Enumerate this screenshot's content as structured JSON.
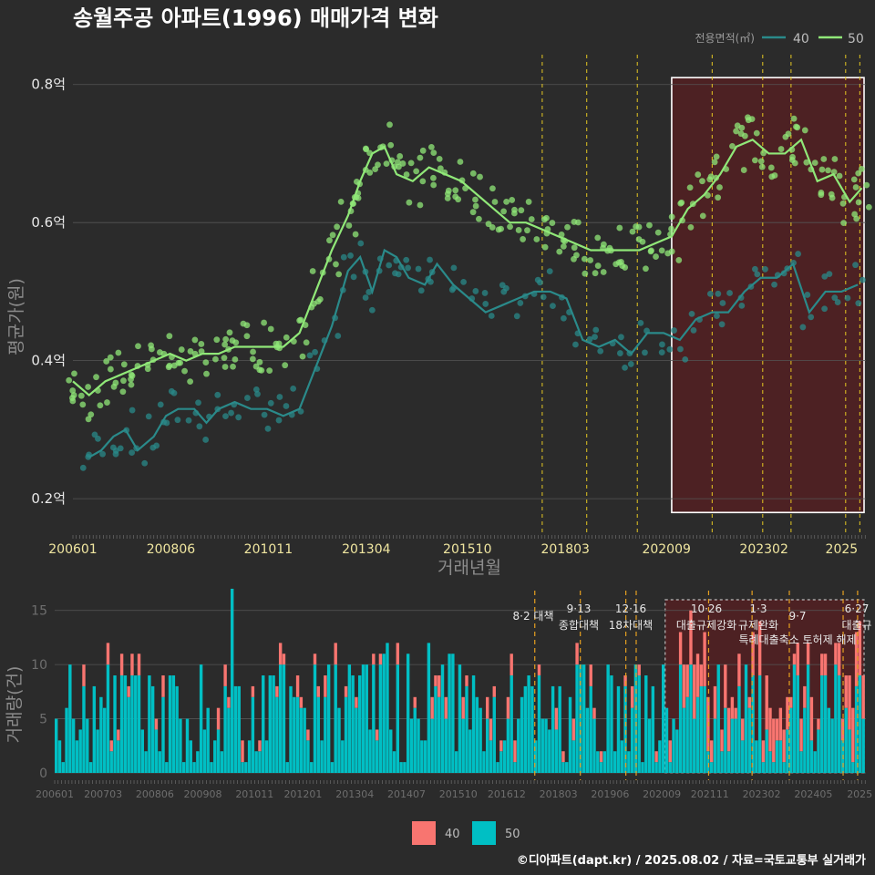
{
  "title": "송월주공 아파트(1996) 매매가격 변화",
  "footer": "©디아파트(dapt.kr) / 2025.08.02 / 자료=국토교통부 실거래가",
  "colors": {
    "background": "#2b2b2b",
    "price40": "#2a8a8a",
    "price50": "#90e878",
    "vol40": "#f87570",
    "vol50": "#00bfc4",
    "highlight": "#5a1f22",
    "policy": "#e6c822"
  },
  "chart_data": [
    {
      "type": "line",
      "title": "송월주공 아파트(1996) 매매가격 변화",
      "xlabel": "거래년월",
      "ylabel": "평균가(원)",
      "x_tick_labels": [
        "200601",
        "200806",
        "201011",
        "201304",
        "201510",
        "201803",
        "202009",
        "202302",
        "2025"
      ],
      "y_tick_labels": [
        "0.2억",
        "0.4억",
        "0.6억",
        "0.8억"
      ],
      "y_ticks": [
        0.2,
        0.4,
        0.6,
        0.8
      ],
      "ylim": [
        0.15,
        0.83
      ],
      "xlim": [
        2006.0,
        2025.6
      ],
      "legend_title": "전용면적(㎡)",
      "legend_position": "top-right",
      "grid": true,
      "series": [
        {
          "name": "40",
          "x": [
            2006.4,
            2006.7,
            2007.0,
            2007.3,
            2007.6,
            2008.0,
            2008.3,
            2008.6,
            2009.0,
            2009.3,
            2009.6,
            2010.0,
            2010.4,
            2010.8,
            2011.2,
            2011.6,
            2012.0,
            2012.4,
            2012.8,
            2013.1,
            2013.4,
            2013.7,
            2014.0,
            2014.3,
            2014.7,
            2015.0,
            2015.4,
            2015.8,
            2016.2,
            2016.6,
            2017.0,
            2017.4,
            2017.8,
            2018.2,
            2018.6,
            2019.0,
            2019.4,
            2019.8,
            2020.2,
            2020.6,
            2021.0,
            2021.4,
            2021.8,
            2022.2,
            2022.6,
            2023.0,
            2023.4,
            2023.8,
            2024.2,
            2024.6,
            2025.0,
            2025.4
          ],
          "y": [
            0.26,
            0.27,
            0.29,
            0.3,
            0.27,
            0.29,
            0.32,
            0.33,
            0.33,
            0.31,
            0.33,
            0.34,
            0.33,
            0.33,
            0.32,
            0.33,
            0.39,
            0.45,
            0.53,
            0.55,
            0.5,
            0.56,
            0.55,
            0.52,
            0.51,
            0.54,
            0.51,
            0.49,
            0.47,
            0.48,
            0.49,
            0.5,
            0.5,
            0.49,
            0.43,
            0.42,
            0.43,
            0.41,
            0.44,
            0.44,
            0.43,
            0.46,
            0.47,
            0.47,
            0.5,
            0.52,
            0.52,
            0.54,
            0.47,
            0.5,
            0.5,
            0.51
          ]
        },
        {
          "name": "50",
          "x": [
            2006.0,
            2006.4,
            2006.8,
            2007.2,
            2007.6,
            2008.0,
            2008.4,
            2008.8,
            2009.2,
            2009.6,
            2010.0,
            2010.4,
            2010.8,
            2011.2,
            2011.6,
            2012.0,
            2012.4,
            2012.8,
            2013.1,
            2013.4,
            2013.7,
            2014.0,
            2014.4,
            2014.8,
            2015.2,
            2015.6,
            2016.0,
            2016.4,
            2016.8,
            2017.2,
            2017.6,
            2018.0,
            2018.4,
            2018.8,
            2019.2,
            2019.6,
            2020.0,
            2020.4,
            2020.8,
            2021.2,
            2021.6,
            2022.0,
            2022.4,
            2022.8,
            2023.2,
            2023.6,
            2024.0,
            2024.4,
            2024.8,
            2025.2,
            2025.5
          ],
          "y": [
            0.37,
            0.35,
            0.37,
            0.38,
            0.39,
            0.4,
            0.41,
            0.4,
            0.41,
            0.41,
            0.42,
            0.42,
            0.42,
            0.42,
            0.44,
            0.5,
            0.56,
            0.61,
            0.66,
            0.7,
            0.71,
            0.67,
            0.66,
            0.68,
            0.67,
            0.66,
            0.64,
            0.62,
            0.6,
            0.6,
            0.59,
            0.58,
            0.57,
            0.56,
            0.56,
            0.56,
            0.56,
            0.57,
            0.58,
            0.62,
            0.64,
            0.67,
            0.71,
            0.72,
            0.7,
            0.7,
            0.72,
            0.66,
            0.67,
            0.63,
            0.65
          ]
        }
      ],
      "highlight_range": [
        2020.8,
        2025.6
      ],
      "policy_lines": [
        2017.6,
        2018.7,
        2019.95,
        2021.8,
        2023.05,
        2023.75,
        2025.1,
        2025.45
      ]
    },
    {
      "type": "bar",
      "xlabel": "",
      "ylabel": "거래량(건)",
      "y_tick_labels": [
        "0",
        "5",
        "10",
        "15"
      ],
      "y_ticks": [
        0,
        5,
        10,
        15
      ],
      "ylim": [
        0,
        17.5
      ],
      "x_tick_labels": [
        "200601",
        "200703",
        "200806",
        "200908",
        "201011",
        "201201",
        "201304",
        "201407",
        "201510",
        "201612",
        "201803",
        "201906",
        "202009",
        "202111",
        "202302",
        "202405",
        "2025"
      ],
      "legend_position": "bottom",
      "series_names": [
        "40",
        "50"
      ],
      "approx_range_50": [
        1,
        12
      ],
      "approx_range_40": [
        0,
        6
      ],
      "annotations": [
        {
          "date": "8·2 대책",
          "label": ""
        },
        {
          "date": "9·13",
          "label": "종합대책"
        },
        {
          "date": "12·16",
          "label": "18차대책"
        },
        {
          "date": "10·26",
          "label": "대출규제강화"
        },
        {
          "date": "1·3",
          "label": "규제완화"
        },
        {
          "date": "9·7",
          "label": "특례대출축소 토허제 해제"
        },
        {
          "date": "6·27",
          "label": "대출규"
        }
      ]
    }
  ]
}
